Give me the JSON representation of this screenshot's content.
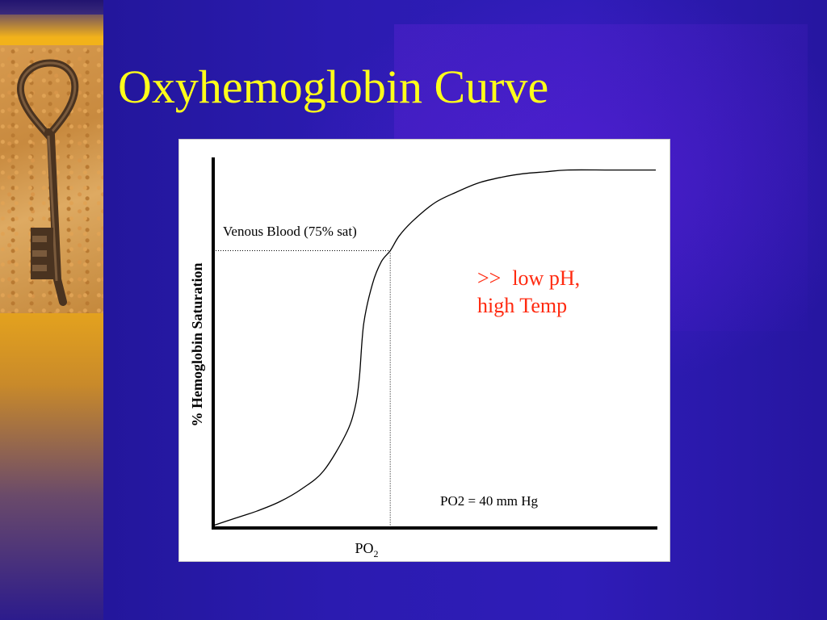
{
  "slide": {
    "title": "Oxyhemoglobin Curve",
    "title_color": "#ffff1a",
    "background_color": "#2a1aa8",
    "sidebar_color": "#f2b21a"
  },
  "annotation": {
    "arrow": ">>",
    "line1": "low pH,",
    "line2": "high Temp",
    "color": "#ff2a10"
  },
  "chart_data": {
    "type": "line",
    "title": "",
    "xlabel": "PO",
    "xlabel_subscript": "2",
    "ylabel": "% Hemoglobin Saturation",
    "xlim": [
      0,
      100
    ],
    "ylim": [
      0,
      100
    ],
    "grid": false,
    "series": [
      {
        "x": [
          0,
          5,
          10,
          15,
          20,
          25,
          30,
          32,
          33,
          34,
          36,
          38,
          40,
          42,
          45,
          50,
          55,
          60,
          65,
          70,
          75,
          80,
          90,
          100
        ],
        "y": [
          0,
          2,
          4,
          6.5,
          10,
          15,
          25,
          32,
          40,
          55,
          66,
          72,
          75,
          79,
          83,
          88,
          91,
          93.5,
          95,
          96,
          96.5,
          97,
          97,
          97
        ]
      }
    ],
    "reference": {
      "x": 40,
      "y": 75,
      "label_y": "Venous Blood (75% sat)",
      "label_x": "PO2 = 40 mm Hg"
    }
  }
}
